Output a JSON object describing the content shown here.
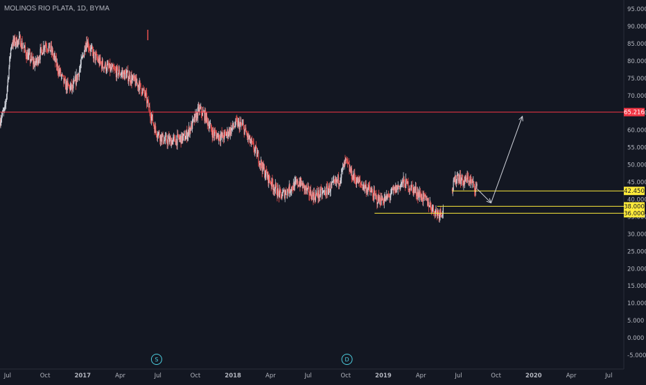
{
  "header": {
    "title": "MOLINOS RIO PLATA, 1D, BYMA"
  },
  "chart_data": {
    "type": "candlestick",
    "title": "MOLINOS RIO PLATA, 1D, BYMA",
    "ylim": [
      -7.5,
      97.5
    ],
    "y_ticks": [
      "95.000",
      "90.000",
      "85.000",
      "80.000",
      "75.000",
      "70.000",
      "65.000",
      "60.000",
      "55.000",
      "50.000",
      "45.000",
      "40.000",
      "35.000",
      "30.000",
      "25.000",
      "20.000",
      "15.000",
      "10.000",
      "5.000",
      "0.000",
      "-5.000"
    ],
    "y_tick_values": [
      95,
      90,
      85,
      80,
      75,
      70,
      65,
      60,
      55,
      50,
      45,
      40,
      35,
      30,
      25,
      20,
      15,
      10,
      5,
      0,
      -5
    ],
    "x_ticks": [
      "Jul",
      "Oct",
      "2017",
      "Apr",
      "Jul",
      "Oct",
      "2018",
      "Apr",
      "Jul",
      "Oct",
      "2019",
      "Apr",
      "Jul",
      "Oct",
      "2020",
      "Apr",
      "Jul"
    ],
    "x_tick_positions": [
      0,
      3,
      6,
      9,
      12,
      15,
      18,
      21,
      24,
      27,
      30,
      33,
      36,
      39,
      42,
      45,
      48
    ],
    "x_range_months": [
      -0.6,
      49.2
    ],
    "price_path": [
      [
        -0.6,
        63
      ],
      [
        -0.2,
        66
      ],
      [
        0.3,
        85
      ],
      [
        1,
        86
      ],
      [
        1.5,
        82
      ],
      [
        2.2,
        79
      ],
      [
        3,
        85
      ],
      [
        3.5,
        83
      ],
      [
        4,
        78
      ],
      [
        4.6,
        73
      ],
      [
        5.2,
        72
      ],
      [
        5.8,
        78
      ],
      [
        6.3,
        86
      ],
      [
        6.8,
        82
      ],
      [
        7.5,
        79
      ],
      [
        8.5,
        77
      ],
      [
        9.5,
        76
      ],
      [
        10.5,
        73
      ],
      [
        11,
        70
      ],
      [
        11.4,
        65
      ],
      [
        11.8,
        60
      ],
      [
        12.5,
        57
      ],
      [
        13.3,
        57
      ],
      [
        14.2,
        58
      ],
      [
        14.8,
        62
      ],
      [
        15.3,
        66
      ],
      [
        15.8,
        64
      ],
      [
        16.4,
        59
      ],
      [
        17.2,
        58
      ],
      [
        17.8,
        60
      ],
      [
        18.3,
        62
      ],
      [
        18.8,
        61
      ],
      [
        19.3,
        57
      ],
      [
        19.8,
        54
      ],
      [
        20.5,
        48
      ],
      [
        21.2,
        44
      ],
      [
        21.8,
        41
      ],
      [
        22.5,
        43
      ],
      [
        23.3,
        45
      ],
      [
        24,
        42
      ],
      [
        24.5,
        41
      ],
      [
        25.3,
        42
      ],
      [
        26,
        44
      ],
      [
        26.5,
        46
      ],
      [
        27,
        51
      ],
      [
        27.5,
        47
      ],
      [
        28,
        45
      ],
      [
        28.8,
        43
      ],
      [
        29.5,
        40
      ],
      [
        30.2,
        40
      ],
      [
        31,
        43
      ],
      [
        31.6,
        45
      ],
      [
        32.4,
        43
      ],
      [
        33,
        41
      ],
      [
        33.6,
        39
      ],
      [
        34,
        37
      ],
      [
        34.4,
        36
      ],
      [
        34.8,
        37
      ]
    ],
    "price_path_2": [
      [
        35.5,
        43
      ],
      [
        35.9,
        47
      ],
      [
        36.4,
        45
      ],
      [
        36.8,
        46
      ],
      [
        37.2,
        44
      ],
      [
        37.5,
        43
      ]
    ],
    "gap_candles": [
      [
        11.2,
        89
      ],
      [
        11.3,
        86
      ]
    ],
    "horizontal_levels": [
      {
        "value": 65.216,
        "label": "65.216",
        "color": "#f23645",
        "x_start_month": -0.6
      },
      {
        "value": 42.45,
        "label": "42.450",
        "color": "#ffeb3b",
        "x_start_month": 35.5
      },
      {
        "value": 38.0,
        "label": "38.000",
        "color": "#ffeb3b",
        "x_start_month": 34.3
      },
      {
        "value": 36.0,
        "label": "36.000",
        "color": "#ffeb3b",
        "x_start_month": 29.3
      }
    ],
    "projection_arrows": [
      {
        "from": [
          37.5,
          43
        ],
        "to": [
          38.6,
          39
        ]
      },
      {
        "from": [
          38.6,
          39
        ],
        "to": [
          41.1,
          64
        ]
      }
    ],
    "event_markers": [
      {
        "label": "S",
        "x_month": 11.9
      },
      {
        "label": "D",
        "x_month": 27.1
      }
    ],
    "colors": {
      "background": "#131722",
      "up": "#d1d4dc",
      "down": "#ef5350",
      "axis_text": "#b2b5be"
    }
  }
}
